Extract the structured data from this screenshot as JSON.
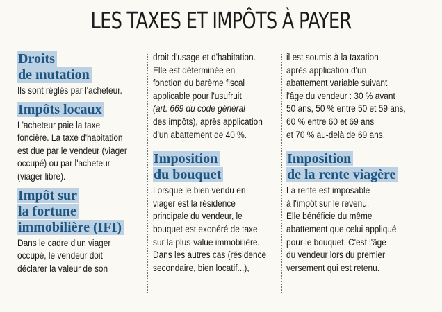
{
  "title": "LES TAXES ET IMPÔTS À PAYER",
  "col1": {
    "s1": {
      "heading": [
        "Droits",
        "de mutation"
      ],
      "body": [
        "Ils sont réglés par l'acheteur."
      ]
    },
    "s2": {
      "heading": [
        "Impôts locaux"
      ],
      "body": [
        "L'acheteur paie la taxe",
        "foncière. La taxe d'habitation",
        "est due par le vendeur (viager",
        "occupé) ou par l'acheteur",
        "(viager libre)."
      ]
    },
    "s3": {
      "heading": [
        "Impôt sur",
        "la fortune",
        "immobilière (IFI)"
      ],
      "body": [
        "Dans le cadre d'un viager",
        "occupé, le vendeur doit",
        "déclarer la valeur de son"
      ]
    }
  },
  "col2": {
    "body_top": [
      "droit d'usage et d'habitation.",
      "Elle est déterminée en",
      "fonction du barème fiscal",
      "applicable pour l'usufruit",
      "(art. 669 du code général",
      "des impôts), après application",
      "d'un abattement de 40 %."
    ],
    "s1": {
      "heading": [
        "Imposition",
        "du bouquet"
      ],
      "body": [
        "Lorsque le bien vendu en",
        "viager est la résidence",
        "principale du vendeur, le",
        "bouquet est exonéré de taxe",
        "sur la plus-value immobilière.",
        "Dans les autres cas (résidence",
        "secondaire, bien locatif...),"
      ]
    }
  },
  "col3": {
    "body_top": [
      "il est soumis à la taxation",
      "après application d'un",
      "abattement variable suivant",
      "l'âge du vendeur : 30 % avant",
      "50 ans, 50 % entre 50 et 59 ans,",
      "60 % entre 60 et 69 ans",
      "et 70 % au-delà de 69 ans."
    ],
    "s1": {
      "heading": [
        "Imposition",
        "de la rente viagère"
      ],
      "body": [
        "La rente est imposable",
        "à l'impôt sur le revenu.",
        "Elle bénéficie du même",
        "abattement que celui appliqué",
        "pour le bouquet. C'est l'âge",
        "du vendeur lors du premier",
        "versement qui est retenu."
      ]
    }
  },
  "colors": {
    "heading_bg": "#bcd2e4",
    "heading_text": "#1d5480",
    "separator": "#6d7478"
  }
}
